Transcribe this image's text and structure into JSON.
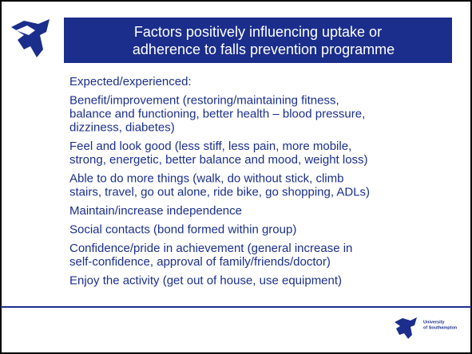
{
  "header": {
    "title_lines": [
      "Factors positively influencing uptake or",
      "adherence to falls prevention programme"
    ]
  },
  "body": {
    "items": [
      [
        "Expected/experienced:"
      ],
      [
        "Benefit/improvement (restoring/maintaining fitness,",
        "balance and functioning, better health – blood pressure,",
        "dizziness, diabetes)"
      ],
      [
        "Feel and look good (less stiff, less pain, more mobile,",
        "strong, energetic, better balance and mood, weight loss)"
      ],
      [
        "Able to do more things (walk, do without stick, climb",
        "stairs, travel, go out alone, ride bike, go shopping, ADLs)"
      ],
      [
        "Maintain/increase independence"
      ],
      [
        "Social contacts (bond formed within group)"
      ],
      [
        "Confidence/pride in achievement (general increase in",
        "self-confidence, approval of family/friends/doctor)"
      ],
      [
        "Enjoy the activity (get out of house, use equipment)"
      ]
    ]
  },
  "footer": {
    "logo_lines": [
      "University",
      "of Southampton"
    ]
  }
}
